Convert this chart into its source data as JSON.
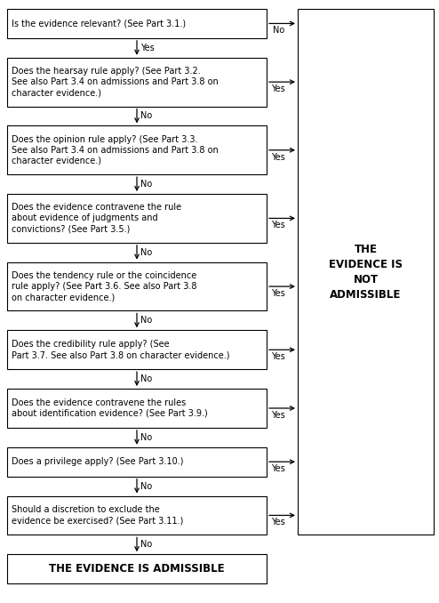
{
  "bg_color": "#ffffff",
  "box_color": "#ffffff",
  "box_edge_color": "#000000",
  "text_color": "#000000",
  "questions": [
    "Is the evidence relevant? (See Part 3.1.)",
    "Does the hearsay rule apply? (See Part 3.2.\nSee also Part 3.4 on admissions and Part 3.8 on\ncharacter evidence.)",
    "Does the opinion rule apply? (See Part 3.3.\nSee also Part 3.4 on admissions and Part 3.8 on\ncharacter evidence.)",
    "Does the evidence contravene the rule\nabout evidence of judgments and\nconvictions? (See Part 3.5.)",
    "Does the tendency rule or the coincidence\nrule apply? (See Part 3.6. See also Part 3.8\non character evidence.)",
    "Does the credibility rule apply? (See\nPart 3.7. See also Part 3.8 on character evidence.)",
    "Does the evidence contravene the rules\nabout identification evidence? (See Part 3.9.)",
    "Does a privilege apply? (See Part 3.10.)",
    "Should a discretion to exclude the\nevidence be exercised? (See Part 3.11.)"
  ],
  "right_labels": [
    "No",
    "Yes",
    "Yes",
    "Yes",
    "Yes",
    "Yes",
    "Yes",
    "Yes",
    "Yes"
  ],
  "down_labels": [
    "Yes",
    "No",
    "No",
    "No",
    "No",
    "No",
    "No",
    "No",
    "No"
  ],
  "not_admissible_text": "THE\nEVIDENCE IS\nNOT\nADMISSIBLE",
  "admissible_text": "THE EVIDENCE IS ADMISSIBLE",
  "font_size": 7.0,
  "admissible_font_size": 8.5,
  "not_admissible_font_size": 8.5,
  "lw": 0.8
}
